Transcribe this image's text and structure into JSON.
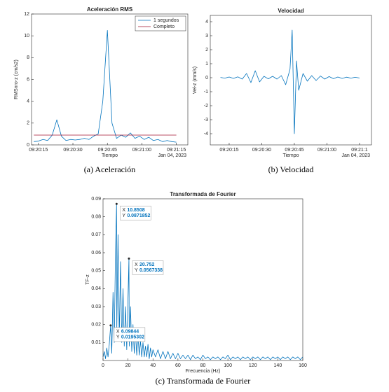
{
  "chart_data": [
    {
      "type": "line",
      "title": "Aceleración RMS",
      "xlabel": "Tiempo",
      "ylabel": "RMSnro-z (cm/s2)",
      "x_secondary_label": "Jan 04, 2023",
      "caption": "(a) Aceleración",
      "x": [
        33613,
        33615,
        33617,
        33619,
        33621,
        33623,
        33625,
        33627,
        33629,
        33631,
        33633,
        33635,
        33637,
        33639,
        33641,
        33643,
        33645,
        33647,
        33649,
        33651,
        33653,
        33655,
        33657,
        33659,
        33661,
        33663,
        33665,
        33667,
        33669,
        33671,
        33673,
        33675
      ],
      "series": [
        {
          "name": "1 segundos",
          "color": "#0072bd",
          "values": [
            0.3,
            0.35,
            0.5,
            0.4,
            0.9,
            2.3,
            0.8,
            0.4,
            0.5,
            0.45,
            0.5,
            0.6,
            0.5,
            0.8,
            1.0,
            4.0,
            10.5,
            2.0,
            0.6,
            0.9,
            0.7,
            1.1,
            0.6,
            0.8,
            0.5,
            0.7,
            0.4,
            0.5,
            0.3,
            0.4,
            0.3,
            0.25
          ]
        },
        {
          "name": "Completo",
          "color": "#a2142f",
          "x": [
            33613,
            33675
          ],
          "values": [
            0.9,
            0.9
          ]
        }
      ],
      "xlim": [
        33612,
        33680
      ],
      "ylim": [
        0,
        12
      ],
      "yticks": [
        0,
        2,
        4,
        6,
        8,
        10,
        12
      ],
      "xticks": [
        {
          "value": 33615,
          "label": "09:20:15"
        },
        {
          "value": 33630,
          "label": "09:20:30"
        },
        {
          "value": 33645,
          "label": "09:20:45"
        },
        {
          "value": 33660,
          "label": "09:21:00"
        },
        {
          "value": 33675,
          "label": "09:21:15"
        }
      ],
      "grid": false,
      "legend": "top-right"
    },
    {
      "type": "line",
      "title": "Velocidad",
      "xlabel": "Tiempo",
      "ylabel": "Vel-z (mm/s)",
      "x_secondary_label": "Jan 04, 2023",
      "caption": "(b) Velocidad",
      "x": [
        33611,
        33613,
        33615,
        33617,
        33619,
        33621,
        33623,
        33625,
        33627,
        33629,
        33631,
        33633,
        33635,
        33637,
        33639,
        33641,
        33643,
        33644,
        33645,
        33646,
        33647,
        33649,
        33651,
        33653,
        33655,
        33657,
        33659,
        33661,
        33663,
        33665,
        33667,
        33669,
        33671,
        33673,
        33675
      ],
      "series": [
        {
          "color": "#0072bd",
          "values": [
            0.02,
            -0.03,
            0.05,
            -0.05,
            0.06,
            -0.1,
            0.3,
            -0.35,
            0.5,
            -0.3,
            0.1,
            -0.08,
            0.1,
            -0.1,
            0.15,
            -0.5,
            0.6,
            3.4,
            -4.0,
            1.2,
            -0.9,
            0.3,
            -0.25,
            0.15,
            -0.2,
            0.12,
            -0.1,
            0.08,
            -0.07,
            0.05,
            -0.05,
            0.04,
            -0.03,
            0.03,
            -0.02
          ]
        }
      ],
      "xlim": [
        33606.3,
        33680.5
      ],
      "ylim": [
        -4.8,
        4.45
      ],
      "yticks": [
        -4,
        -3,
        -2,
        -1,
        0,
        1,
        2,
        3,
        4
      ],
      "xticks": [
        {
          "value": 33615,
          "label": "09:20:15"
        },
        {
          "value": 33630,
          "label": "09:20:30"
        },
        {
          "value": 33645,
          "label": "09:20:45"
        },
        {
          "value": 33660,
          "label": "09:21:00"
        },
        {
          "value": 33675,
          "label": "09:21:1"
        }
      ],
      "grid": false
    },
    {
      "type": "line",
      "title": "Transformada de Fourier",
      "xlabel": "Frecuencia (Hz)",
      "ylabel": "TF-z",
      "caption": "(c) Transformada de Fourier",
      "x": [
        0,
        1,
        2,
        3,
        4,
        5,
        6.09844,
        7,
        8,
        9,
        10,
        10.8508,
        11,
        12,
        13,
        14,
        15,
        16,
        17,
        18,
        19,
        20,
        20.752,
        21,
        22,
        23,
        24,
        25,
        26,
        27,
        28,
        29,
        30,
        31,
        32,
        33,
        34,
        35,
        36,
        37,
        38,
        39,
        40,
        42,
        44,
        46,
        48,
        50,
        52,
        54,
        56,
        58,
        60,
        62,
        64,
        66,
        68,
        70,
        72,
        74,
        76,
        78,
        80,
        82,
        84,
        86,
        88,
        90,
        92,
        94,
        96,
        98,
        100,
        102,
        104,
        106,
        108,
        110,
        112,
        114,
        116,
        118,
        120,
        122,
        124,
        126,
        128,
        130,
        132,
        134,
        136,
        138,
        140,
        142,
        144,
        146,
        148,
        150,
        152,
        154,
        156,
        158,
        160
      ],
      "series": [
        {
          "color": "#0072bd",
          "values": [
            0.002,
            0.005,
            0.001,
            0.007,
            0.002,
            0.009,
            0.0195302,
            0.004,
            0.038,
            0.01,
            0.062,
            0.0871852,
            0.015,
            0.07,
            0.012,
            0.055,
            0.01,
            0.04,
            0.008,
            0.03,
            0.006,
            0.035,
            0.0567338,
            0.008,
            0.03,
            0.005,
            0.02,
            0.004,
            0.016,
            0.003,
            0.014,
            0.003,
            0.011,
            0.002,
            0.01,
            0.002,
            0.008,
            0.002,
            0.009,
            0.001,
            0.007,
            0.002,
            0.006,
            0.002,
            0.006,
            0.001,
            0.005,
            0.001,
            0.005,
            0.001,
            0.004,
            0.001,
            0.004,
            0.001,
            0.003,
            0.001,
            0.003,
            0.0005,
            0.003,
            0.001,
            0.002,
            0.0005,
            0.003,
            0.001,
            0.002,
            0.0005,
            0.002,
            0.001,
            0.002,
            0.0005,
            0.002,
            0.001,
            0.003,
            0.0005,
            0.002,
            0.001,
            0.002,
            0.0005,
            0.002,
            0.001,
            0.002,
            0.0005,
            0.002,
            0.001,
            0.002,
            0.0005,
            0.002,
            0.001,
            0.002,
            0.0005,
            0.002,
            0.001,
            0.002,
            0.0005,
            0.002,
            0.001,
            0.002,
            0.0005,
            0.002,
            0.001,
            0.002,
            0.0005,
            0.002
          ]
        }
      ],
      "xlim": [
        0,
        160
      ],
      "ylim": [
        0,
        0.09
      ],
      "xticks": [
        0,
        20,
        40,
        60,
        80,
        100,
        120,
        140,
        160
      ],
      "yticks": [
        0.01,
        0.02,
        0.03,
        0.04,
        0.05,
        0.06,
        0.07,
        0.08,
        0.09
      ],
      "grid": false,
      "datatip_labels": [
        "X",
        "Y"
      ],
      "datatips": [
        {
          "x": 10.8508,
          "y": 0.0871852
        },
        {
          "x": 20.752,
          "y": 0.0567338
        },
        {
          "x": 6.09844,
          "y": 0.0195302
        }
      ]
    }
  ]
}
